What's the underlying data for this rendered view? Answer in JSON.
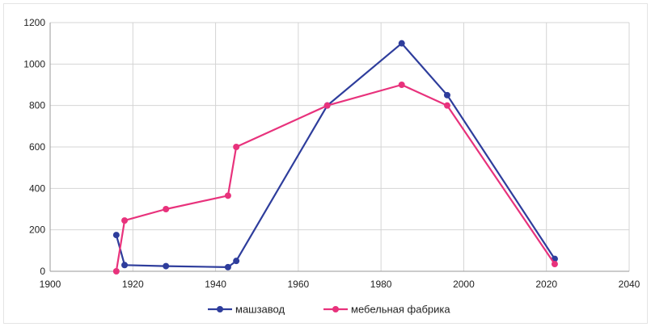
{
  "chart_data": {
    "type": "scatter",
    "title": "",
    "xlabel": "",
    "ylabel": "",
    "xlim": [
      1900,
      2040
    ],
    "ylim": [
      0,
      1200
    ],
    "x_ticks": [
      1900,
      1920,
      1940,
      1960,
      1980,
      2000,
      2020,
      2040
    ],
    "y_ticks": [
      0,
      200,
      400,
      600,
      800,
      1000,
      1200
    ],
    "grid": true,
    "legend_position": "bottom",
    "series": [
      {
        "name": "машзавод",
        "color": "#2e3d9c",
        "points": [
          [
            1916,
            175
          ],
          [
            1918,
            30
          ],
          [
            1928,
            25
          ],
          [
            1943,
            20
          ],
          [
            1945,
            50
          ],
          [
            1967,
            800
          ],
          [
            1985,
            1100
          ],
          [
            1996,
            850
          ],
          [
            2022,
            60
          ]
        ]
      },
      {
        "name": "мебельная фабрика",
        "color": "#e8327c",
        "points": [
          [
            1916,
            0
          ],
          [
            1918,
            245
          ],
          [
            1928,
            300
          ],
          [
            1943,
            365
          ],
          [
            1945,
            600
          ],
          [
            1967,
            800
          ],
          [
            1985,
            900
          ],
          [
            1996,
            800
          ],
          [
            2022,
            35
          ]
        ]
      }
    ]
  }
}
